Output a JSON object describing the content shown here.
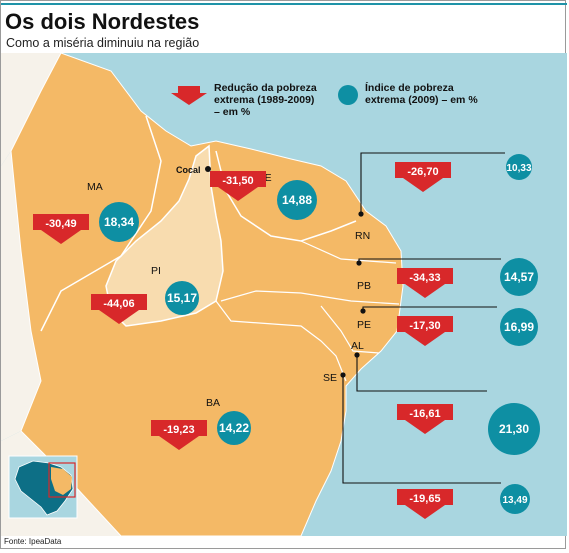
{
  "header": {
    "title": "Os dois Nordestes",
    "subtitle": "Como a miséria diminuiu na região"
  },
  "legend": {
    "reduction_label_1": "Redução da pobreza",
    "reduction_label_2": "extrema (1989-2009)",
    "reduction_label_3": "– em %",
    "index_label_1": "Índice de pobreza",
    "index_label_2": "extrema (2009) – em %"
  },
  "colors": {
    "ocean": "#a9d6e0",
    "land": "#f4b966",
    "piaui_light": "#f8dcaf",
    "outside": "#f6f2ea",
    "arrow_red": "#d8282a",
    "circle_teal": "#0e8fa3"
  },
  "places": {
    "cocal": "Cocal"
  },
  "states": [
    {
      "code": "MA",
      "reduction": "-30,49",
      "poverty": "18,34"
    },
    {
      "code": "CE",
      "reduction": "-31,50",
      "poverty": "14,88"
    },
    {
      "code": "PI",
      "reduction": "-44,06",
      "poverty": "15,17"
    },
    {
      "code": "BA",
      "reduction": "-19,23",
      "poverty": "14,22"
    },
    {
      "code": "RN",
      "reduction": "-26,70",
      "poverty": "10,33"
    },
    {
      "code": "PB",
      "reduction": "-34,33",
      "poverty": "14,57"
    },
    {
      "code": "PE",
      "reduction": "-17,30",
      "poverty": "16,99"
    },
    {
      "code": "AL",
      "reduction": "-16,61",
      "poverty": "21,30"
    },
    {
      "code": "SE",
      "reduction": "-19,65",
      "poverty": "13,49"
    }
  ],
  "footer": {
    "source": "Fonte: IpeaData"
  }
}
